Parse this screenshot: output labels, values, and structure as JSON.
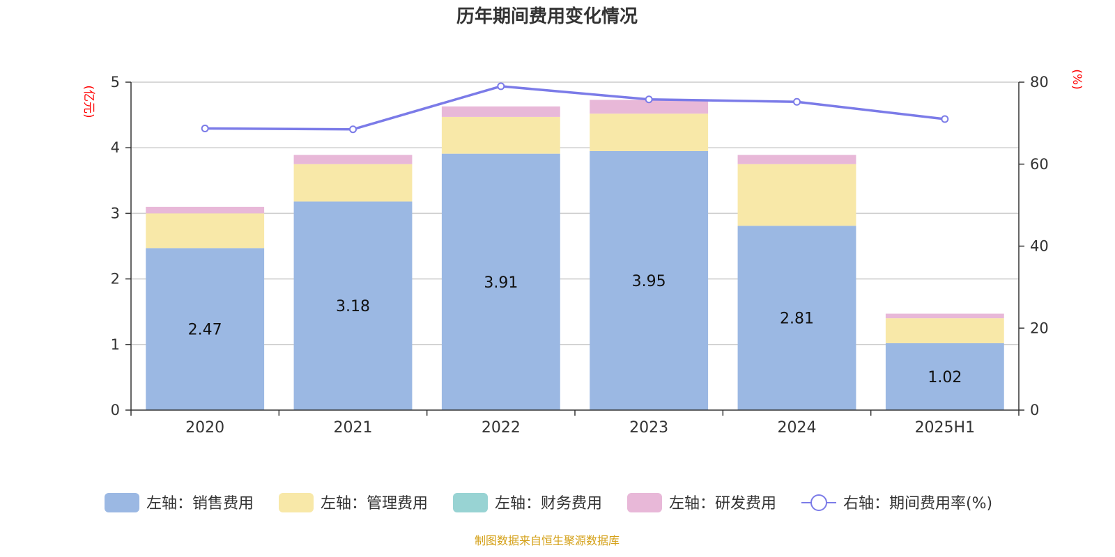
{
  "chart_data": {
    "type": "bar",
    "title": "历年期间费用变化情况",
    "categories": [
      "2020",
      "2021",
      "2022",
      "2023",
      "2024",
      "2025H1"
    ],
    "left_axis": {
      "unit": "(亿元)",
      "ylim": [
        0,
        5
      ],
      "ticks": [
        "0",
        "1",
        "2",
        "3",
        "4",
        "5"
      ]
    },
    "right_axis": {
      "unit": "(%)",
      "ylim": [
        0,
        80
      ],
      "ticks": [
        "0",
        "20",
        "40",
        "60",
        "80"
      ]
    },
    "grid": true,
    "stacked": true,
    "series": [
      {
        "name": "左轴：销售费用",
        "type": "bar",
        "axis": "left",
        "color": "#9bb8e3",
        "values": [
          2.47,
          3.18,
          3.91,
          3.95,
          2.81,
          1.02
        ],
        "labels": [
          "2.47",
          "3.18",
          "3.91",
          "3.95",
          "2.81",
          "1.02"
        ]
      },
      {
        "name": "左轴：管理费用",
        "type": "bar",
        "axis": "left",
        "color": "#f8e8a8",
        "values": [
          0.53,
          0.57,
          0.56,
          0.57,
          0.94,
          0.38
        ]
      },
      {
        "name": "左轴：财务费用",
        "type": "bar",
        "axis": "left",
        "color": "#98d3d3",
        "values": [
          0,
          0,
          0,
          0,
          0,
          0
        ]
      },
      {
        "name": "左轴：研发费用",
        "type": "bar",
        "axis": "left",
        "color": "#e8b8d8",
        "values": [
          0.1,
          0.14,
          0.16,
          0.21,
          0.14,
          0.07
        ]
      },
      {
        "name": "右轴：期间费用率(%)",
        "type": "line",
        "axis": "right",
        "color": "#7b7be8",
        "values": [
          68.7,
          68.5,
          79.0,
          75.8,
          75.2,
          71.0
        ]
      }
    ],
    "legend_position": "bottom",
    "source": "制图数据来自恒生聚源数据库",
    "source_color": "#d4a017"
  }
}
